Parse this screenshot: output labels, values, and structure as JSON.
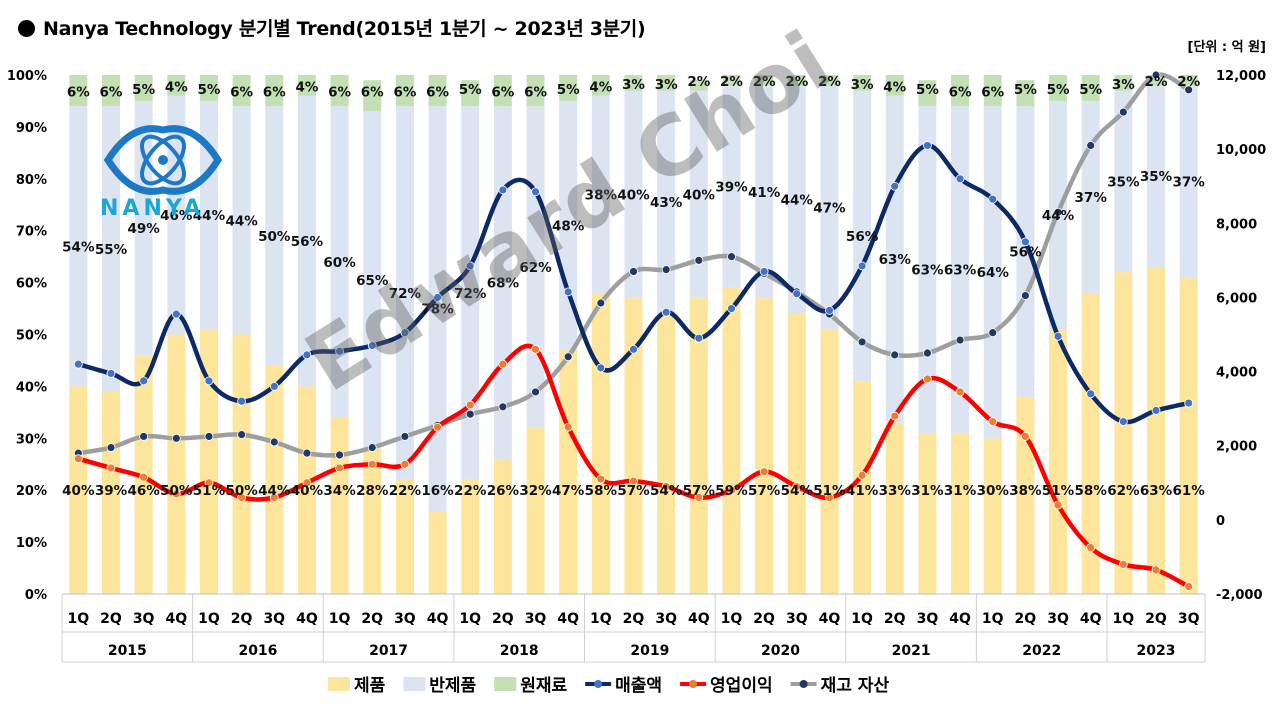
{
  "title": "Nanya Technology  분기별 Trend(2015년 1분기 ~  2023년 3분기)",
  "unit": "[단위 : 억 원]",
  "watermark": "Edward Choi",
  "logo_text": "NANYA",
  "legend": [
    "제품",
    "반제품",
    "원재료",
    "매출액",
    "영업이익",
    "재고 자산"
  ],
  "colors": {
    "product": "#fde59b",
    "semi": "#dce3f1",
    "raw": "#c3e0b5",
    "revenue": "#0d2a66",
    "revenue_marker": "#4472c4",
    "op_profit": "#ff0000",
    "op_marker": "#ed7d31",
    "inventory": "#9e9e9e",
    "inventory_marker": "#1f3864"
  },
  "chart_data": {
    "type": "bar",
    "stacked": true,
    "categories": [
      "1Q",
      "2Q",
      "3Q",
      "4Q",
      "1Q",
      "2Q",
      "3Q",
      "4Q",
      "1Q",
      "2Q",
      "3Q",
      "4Q",
      "1Q",
      "2Q",
      "3Q",
      "4Q",
      "1Q",
      "2Q",
      "3Q",
      "4Q",
      "1Q",
      "2Q",
      "3Q",
      "4Q",
      "1Q",
      "2Q",
      "3Q",
      "4Q",
      "1Q",
      "2Q",
      "3Q",
      "4Q",
      "1Q",
      "2Q",
      "3Q"
    ],
    "years": [
      "2015",
      "2016",
      "2017",
      "2018",
      "2019",
      "2020",
      "2021",
      "2022",
      "2023"
    ],
    "y_left": {
      "ylim": [
        0,
        100
      ],
      "ticks": [
        "0%",
        "10%",
        "20%",
        "30%",
        "40%",
        "50%",
        "60%",
        "70%",
        "80%",
        "90%",
        "100%"
      ]
    },
    "y_right": {
      "ylim": [
        -2000,
        12000
      ],
      "ticks": [
        "-2,000",
        "0",
        "2,000",
        "4,000",
        "6,000",
        "8,000",
        "10,000",
        "12,000"
      ]
    },
    "series": [
      {
        "name": "제품",
        "kind": "bar",
        "values": [
          40,
          39,
          46,
          50,
          51,
          50,
          44,
          40,
          34,
          28,
          22,
          16,
          22,
          26,
          32,
          47,
          58,
          57,
          54,
          57,
          59,
          57,
          54,
          51,
          41,
          33,
          31,
          31,
          30,
          38,
          51,
          58,
          62,
          63,
          61
        ],
        "labels": [
          "40%",
          "39%",
          "46%",
          "50%",
          "51%",
          "50%",
          "44%",
          "40%",
          "34%",
          "28%",
          "22%",
          "16%",
          "22%",
          "26%",
          "32%",
          "47%",
          "58%",
          "57%",
          "54%",
          "57%",
          "59%",
          "57%",
          "54%",
          "51%",
          "41%",
          "33%",
          "31%",
          "31%",
          "30%",
          "38%",
          "51%",
          "58%",
          "62%",
          "63%",
          "61%"
        ]
      },
      {
        "name": "반제품",
        "kind": "bar",
        "values": [
          54,
          55,
          49,
          46,
          44,
          44,
          50,
          56,
          60,
          65,
          72,
          78,
          72,
          68,
          62,
          48,
          38,
          40,
          43,
          40,
          39,
          41,
          44,
          47,
          56,
          63,
          63,
          63,
          64,
          56,
          44,
          37,
          35,
          35,
          37
        ],
        "labels": [
          "54%",
          "55%",
          "49%",
          "46%",
          "44%",
          "44%",
          "50%",
          "56%",
          "60%",
          "65%",
          "72%",
          "78%",
          "72%",
          "68%",
          "62%",
          "48%",
          "38%",
          "40%",
          "43%",
          "40%",
          "39%",
          "41%",
          "44%",
          "47%",
          "56%",
          "63%",
          "63%",
          "63%",
          "64%",
          "56%",
          "44%",
          "37%",
          "35%",
          "35%",
          "37%"
        ]
      },
      {
        "name": "원재료",
        "kind": "bar",
        "values": [
          6,
          6,
          5,
          4,
          5,
          6,
          6,
          4,
          6,
          6,
          6,
          6,
          5,
          6,
          6,
          5,
          4,
          3,
          3,
          2,
          2,
          2,
          2,
          2,
          3,
          4,
          5,
          6,
          6,
          5,
          5,
          5,
          3,
          2,
          2
        ],
        "labels": [
          "6%",
          "6%",
          "5%",
          "4%",
          "5%",
          "6%",
          "6%",
          "4%",
          "6%",
          "6%",
          "6%",
          "6%",
          "5%",
          "6%",
          "6%",
          "5%",
          "4%",
          "3%",
          "3%",
          "2%",
          "2%",
          "2%",
          "2%",
          "2%",
          "3%",
          "4%",
          "5%",
          "6%",
          "6%",
          "5%",
          "5%",
          "5%",
          "3%",
          "2%",
          "2%"
        ]
      },
      {
        "name": "매출액",
        "kind": "line",
        "values": [
          4200,
          3950,
          3750,
          5550,
          3750,
          3200,
          3600,
          4450,
          4550,
          4700,
          5050,
          6000,
          6850,
          8900,
          8850,
          6150,
          4100,
          4600,
          5600,
          4900,
          5700,
          6700,
          6100,
          5650,
          6850,
          9000,
          10100,
          9200,
          8650,
          7500,
          4950,
          3400,
          2650,
          2950,
          3150
        ]
      },
      {
        "name": "영업이익",
        "kind": "line",
        "values": [
          1650,
          1400,
          1150,
          700,
          1000,
          600,
          600,
          1000,
          1400,
          1500,
          1500,
          2500,
          3100,
          4200,
          4600,
          2500,
          1100,
          1050,
          900,
          600,
          800,
          1300,
          900,
          600,
          1200,
          2800,
          3800,
          3450,
          2650,
          2250,
          400,
          -750,
          -1200,
          -1350,
          -1800
        ]
      },
      {
        "name": "재고 자산",
        "kind": "line",
        "values": [
          1800,
          1950,
          2250,
          2200,
          2250,
          2300,
          2100,
          1800,
          1750,
          1950,
          2250,
          2550,
          2850,
          3050,
          3450,
          4400,
          5850,
          6700,
          6750,
          7000,
          7100,
          6650,
          6150,
          5550,
          4800,
          4450,
          4500,
          4850,
          5050,
          6050,
          8300,
          10100,
          11000,
          12000,
          11600
        ]
      }
    ]
  }
}
